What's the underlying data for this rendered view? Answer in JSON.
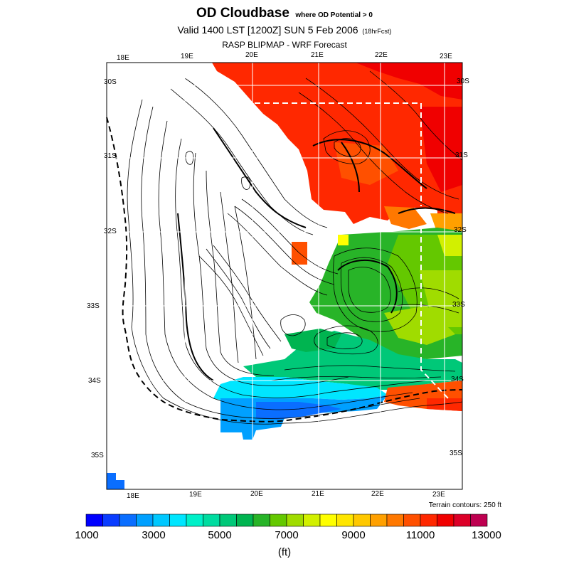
{
  "title": {
    "main": "OD Cloudbase",
    "qualifier": "where OD Potential > 0"
  },
  "subtitle": {
    "text": "Valid 1400 LST [1200Z] SUN 5 Feb 2006",
    "forecast": "(18hrFcst)"
  },
  "source": "RASP BLIPMAP - WRF Forecast",
  "axes": {
    "top_lon": [
      "18E",
      "19E",
      "20E",
      "21E",
      "22E",
      "23E"
    ],
    "bottom_lon": [
      "18E",
      "19E",
      "20E",
      "21E",
      "22E",
      "23E"
    ],
    "left_lat": [
      "30S",
      "31S",
      "32S",
      "33S",
      "34S",
      "35S"
    ],
    "right_lat": [
      "30S",
      "31S",
      "32S",
      "33S",
      "34S",
      "35S"
    ]
  },
  "terrain_note": "Terrain contours: 250 ft",
  "legend": {
    "unit": "(ft)",
    "labels": [
      "1000",
      "3000",
      "5000",
      "7000",
      "9000",
      "11000",
      "13000"
    ],
    "colors": [
      "#0000ff",
      "#0a3cff",
      "#0a6eff",
      "#00a0ff",
      "#00c8ff",
      "#00e6ff",
      "#00f0c8",
      "#00dca0",
      "#00c878",
      "#00b450",
      "#28b428",
      "#64c800",
      "#a0dc00",
      "#d2f000",
      "#ffff00",
      "#ffe600",
      "#ffc800",
      "#ffa000",
      "#ff7800",
      "#ff5000",
      "#ff2800",
      "#f00000",
      "#dc0028",
      "#be0050"
    ]
  }
}
